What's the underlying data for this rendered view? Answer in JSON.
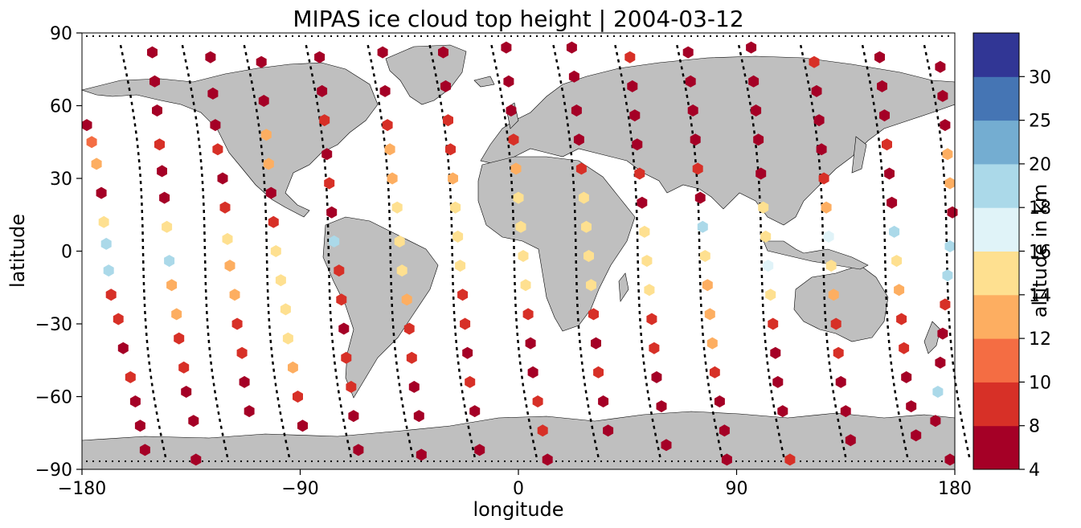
{
  "chart_data": {
    "type": "scatter",
    "title": "MIPAS ice cloud top height | 2004-03-12",
    "xlabel": "longitude",
    "ylabel": "latitude",
    "xlim": [
      -180,
      180
    ],
    "ylim": [
      -90,
      90
    ],
    "xticks": [
      "−180",
      "−90",
      "0",
      "90",
      "180"
    ],
    "yticks": [
      "90",
      "60",
      "30",
      "0",
      "−30",
      "−60",
      "−90"
    ],
    "background_map": "world coastlines, land filled gray",
    "marker": "hexagon",
    "colorbar": {
      "label": "altitude in km",
      "boundaries": [
        4,
        8,
        10,
        12,
        14,
        16,
        18,
        20,
        25,
        30
      ],
      "tick_labels": [
        "4",
        "8",
        "10",
        "12",
        "14",
        "16",
        "18",
        "20",
        "25",
        "30"
      ],
      "colors": [
        "#a50026",
        "#d73027",
        "#f46d43",
        "#fdae61",
        "#fee090",
        "#e0f3f8",
        "#abd9e9",
        "#74add1",
        "#4575b4",
        "#313695"
      ]
    },
    "orbit_tracks": 14,
    "points": [
      [
        -178,
        52,
        6
      ],
      [
        -176,
        45,
        11
      ],
      [
        -174,
        36,
        12
      ],
      [
        -172,
        24,
        6
      ],
      [
        -171,
        12,
        15
      ],
      [
        -170,
        3,
        18
      ],
      [
        -169,
        -8,
        18
      ],
      [
        -168,
        -18,
        9
      ],
      [
        -165,
        -28,
        9
      ],
      [
        -163,
        -40,
        6
      ],
      [
        -160,
        -52,
        9
      ],
      [
        -158,
        -62,
        6
      ],
      [
        -156,
        -72,
        6
      ],
      [
        -154,
        -82,
        6
      ],
      [
        -151,
        82,
        6
      ],
      [
        -150,
        70,
        6
      ],
      [
        -149,
        58,
        6
      ],
      [
        -148,
        44,
        9
      ],
      [
        -147,
        33,
        6
      ],
      [
        -146,
        22,
        6
      ],
      [
        -145,
        10,
        15
      ],
      [
        -144,
        -4,
        18
      ],
      [
        -143,
        -14,
        13
      ],
      [
        -141,
        -26,
        13
      ],
      [
        -140,
        -36,
        9
      ],
      [
        -138,
        -48,
        9
      ],
      [
        -137,
        -58,
        6
      ],
      [
        -134,
        -70,
        6
      ],
      [
        -133,
        -86,
        6
      ],
      [
        -127,
        80,
        6
      ],
      [
        -126,
        65,
        6
      ],
      [
        -125,
        52,
        6
      ],
      [
        -124,
        42,
        9
      ],
      [
        -122,
        30,
        6
      ],
      [
        -121,
        18,
        9
      ],
      [
        -120,
        5,
        15
      ],
      [
        -119,
        -6,
        13
      ],
      [
        -117,
        -18,
        13
      ],
      [
        -116,
        -30,
        9
      ],
      [
        -114,
        -42,
        9
      ],
      [
        -113,
        -54,
        6
      ],
      [
        -111,
        -66,
        6
      ],
      [
        -106,
        78,
        6
      ],
      [
        -105,
        62,
        6
      ],
      [
        -104,
        48,
        13
      ],
      [
        -103,
        36,
        13
      ],
      [
        -102,
        24,
        6
      ],
      [
        -101,
        12,
        9
      ],
      [
        -100,
        0,
        15
      ],
      [
        -98,
        -12,
        15
      ],
      [
        -96,
        -24,
        15
      ],
      [
        -95,
        -36,
        15
      ],
      [
        -93,
        -48,
        13
      ],
      [
        -91,
        -60,
        9
      ],
      [
        -89,
        -72,
        6
      ],
      [
        -82,
        80,
        6
      ],
      [
        -81,
        66,
        6
      ],
      [
        -80,
        54,
        9
      ],
      [
        -79,
        40,
        6
      ],
      [
        -78,
        28,
        9
      ],
      [
        -77,
        16,
        6
      ],
      [
        -76,
        4,
        18
      ],
      [
        -74,
        -8,
        9
      ],
      [
        -73,
        -20,
        9
      ],
      [
        -72,
        -32,
        6
      ],
      [
        -71,
        -44,
        9
      ],
      [
        -69,
        -56,
        9
      ],
      [
        -68,
        -68,
        6
      ],
      [
        -66,
        -82,
        6
      ],
      [
        -56,
        82,
        6
      ],
      [
        -55,
        66,
        6
      ],
      [
        -54,
        52,
        9
      ],
      [
        -53,
        42,
        13
      ],
      [
        -52,
        30,
        13
      ],
      [
        -50,
        18,
        15
      ],
      [
        -49,
        4,
        15
      ],
      [
        -48,
        -8,
        15
      ],
      [
        -46,
        -20,
        13
      ],
      [
        -45,
        -32,
        9
      ],
      [
        -44,
        -44,
        9
      ],
      [
        -43,
        -56,
        6
      ],
      [
        -41,
        -68,
        6
      ],
      [
        -40,
        -84,
        6
      ],
      [
        -31,
        82,
        6
      ],
      [
        -30,
        68,
        6
      ],
      [
        -29,
        54,
        9
      ],
      [
        -28,
        42,
        9
      ],
      [
        -27,
        30,
        13
      ],
      [
        -26,
        18,
        15
      ],
      [
        -25,
        6,
        15
      ],
      [
        -24,
        -6,
        15
      ],
      [
        -23,
        -18,
        9
      ],
      [
        -22,
        -30,
        9
      ],
      [
        -21,
        -42,
        6
      ],
      [
        -20,
        -54,
        9
      ],
      [
        -18,
        -66,
        6
      ],
      [
        -16,
        -82,
        6
      ],
      [
        -5,
        84,
        6
      ],
      [
        -4,
        70,
        6
      ],
      [
        -3,
        58,
        6
      ],
      [
        -2,
        46,
        9
      ],
      [
        -1,
        34,
        13
      ],
      [
        0,
        22,
        15
      ],
      [
        1,
        10,
        15
      ],
      [
        2,
        -2,
        15
      ],
      [
        3,
        -14,
        15
      ],
      [
        4,
        -26,
        9
      ],
      [
        5,
        -38,
        6
      ],
      [
        6,
        -50,
        6
      ],
      [
        8,
        -62,
        9
      ],
      [
        10,
        -74,
        9
      ],
      [
        12,
        -86,
        6
      ],
      [
        22,
        84,
        6
      ],
      [
        23,
        72,
        6
      ],
      [
        24,
        58,
        6
      ],
      [
        25,
        46,
        6
      ],
      [
        26,
        34,
        9
      ],
      [
        27,
        22,
        15
      ],
      [
        28,
        10,
        15
      ],
      [
        29,
        -2,
        15
      ],
      [
        30,
        -14,
        15
      ],
      [
        31,
        -26,
        9
      ],
      [
        32,
        -38,
        6
      ],
      [
        33,
        -50,
        9
      ],
      [
        35,
        -62,
        6
      ],
      [
        37,
        -74,
        6
      ],
      [
        46,
        80,
        9
      ],
      [
        47,
        68,
        6
      ],
      [
        48,
        56,
        6
      ],
      [
        49,
        44,
        6
      ],
      [
        50,
        32,
        9
      ],
      [
        51,
        20,
        6
      ],
      [
        52,
        8,
        15
      ],
      [
        53,
        -4,
        15
      ],
      [
        54,
        -16,
        15
      ],
      [
        55,
        -28,
        9
      ],
      [
        56,
        -40,
        9
      ],
      [
        57,
        -52,
        6
      ],
      [
        59,
        -64,
        6
      ],
      [
        61,
        -80,
        6
      ],
      [
        70,
        82,
        6
      ],
      [
        71,
        70,
        6
      ],
      [
        72,
        58,
        6
      ],
      [
        73,
        46,
        6
      ],
      [
        74,
        34,
        9
      ],
      [
        75,
        22,
        6
      ],
      [
        76,
        10,
        18
      ],
      [
        77,
        -2,
        15
      ],
      [
        78,
        -14,
        13
      ],
      [
        79,
        -26,
        13
      ],
      [
        80,
        -38,
        13
      ],
      [
        81,
        -50,
        9
      ],
      [
        83,
        -62,
        6
      ],
      [
        85,
        -74,
        6
      ],
      [
        86,
        -86,
        6
      ],
      [
        96,
        84,
        6
      ],
      [
        97,
        70,
        6
      ],
      [
        98,
        58,
        6
      ],
      [
        99,
        46,
        6
      ],
      [
        100,
        32,
        6
      ],
      [
        101,
        18,
        15
      ],
      [
        102,
        6,
        15
      ],
      [
        103,
        -6,
        17
      ],
      [
        104,
        -18,
        15
      ],
      [
        105,
        -30,
        9
      ],
      [
        106,
        -42,
        6
      ],
      [
        107,
        -54,
        6
      ],
      [
        109,
        -66,
        6
      ],
      [
        112,
        -86,
        9
      ],
      [
        122,
        78,
        9
      ],
      [
        123,
        66,
        6
      ],
      [
        124,
        54,
        6
      ],
      [
        125,
        42,
        6
      ],
      [
        126,
        30,
        9
      ],
      [
        127,
        18,
        13
      ],
      [
        128,
        6,
        17
      ],
      [
        129,
        -6,
        15
      ],
      [
        130,
        -18,
        13
      ],
      [
        131,
        -30,
        9
      ],
      [
        132,
        -42,
        9
      ],
      [
        133,
        -54,
        6
      ],
      [
        135,
        -66,
        6
      ],
      [
        137,
        -78,
        6
      ],
      [
        149,
        80,
        6
      ],
      [
        150,
        68,
        6
      ],
      [
        151,
        56,
        6
      ],
      [
        152,
        44,
        9
      ],
      [
        153,
        32,
        6
      ],
      [
        154,
        20,
        6
      ],
      [
        155,
        8,
        18
      ],
      [
        156,
        -4,
        15
      ],
      [
        157,
        -16,
        13
      ],
      [
        158,
        -28,
        9
      ],
      [
        159,
        -40,
        9
      ],
      [
        160,
        -52,
        6
      ],
      [
        162,
        -64,
        6
      ],
      [
        164,
        -76,
        6
      ],
      [
        174,
        76,
        6
      ],
      [
        175,
        64,
        6
      ],
      [
        176,
        52,
        6
      ],
      [
        177,
        40,
        13
      ],
      [
        178,
        28,
        13
      ],
      [
        179,
        16,
        6
      ],
      [
        178,
        2,
        18
      ],
      [
        177,
        -10,
        18
      ],
      [
        176,
        -22,
        9
      ],
      [
        175,
        -34,
        6
      ],
      [
        174,
        -46,
        6
      ],
      [
        173,
        -58,
        18
      ],
      [
        172,
        -70,
        6
      ],
      [
        178,
        -86,
        6
      ]
    ]
  }
}
